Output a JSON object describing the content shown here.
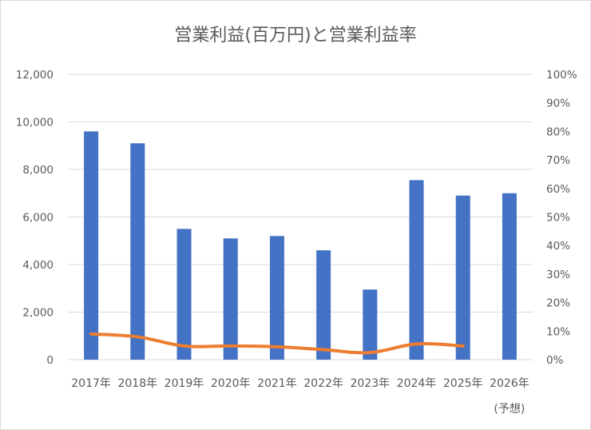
{
  "chart_data": {
    "type": "bar",
    "title": "営業利益(百万円)と営業利益率",
    "categories": [
      "2017年",
      "2018年",
      "2019年",
      "2020年",
      "2021年",
      "2022年",
      "2023年",
      "2024年",
      "2025年",
      "2026年"
    ],
    "category_notes": [
      "",
      "",
      "",
      "",
      "",
      "",
      "",
      "",
      "",
      "(予想)"
    ],
    "series": [
      {
        "type": "bar",
        "axis": "left",
        "color": "#4472c4",
        "values": [
          9600,
          9100,
          5500,
          5100,
          5200,
          4600,
          2950,
          7550,
          6900,
          7000
        ]
      },
      {
        "type": "line",
        "axis": "right",
        "color": "#ed7d31",
        "values": [
          0.09,
          0.08,
          0.048,
          0.048,
          0.045,
          0.035,
          0.025,
          0.055,
          0.048,
          null
        ]
      }
    ],
    "y_left": {
      "min": 0,
      "max": 12000,
      "step": 2000,
      "tick_labels": [
        "0",
        "2,000",
        "4,000",
        "6,000",
        "8,000",
        "10,000",
        "12,000"
      ]
    },
    "y_right": {
      "min": 0,
      "max": 1,
      "step": 0.1,
      "tick_labels": [
        "0%",
        "10%",
        "20%",
        "30%",
        "40%",
        "50%",
        "60%",
        "70%",
        "80%",
        "90%",
        "100%"
      ]
    },
    "grid": true,
    "legend": "none"
  }
}
